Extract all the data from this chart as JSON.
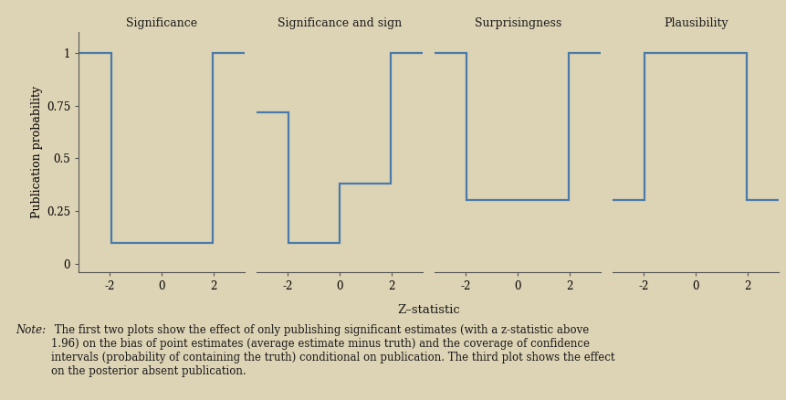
{
  "background_color": "#ddd3b5",
  "line_color": "#4a7aaa",
  "line_width": 1.6,
  "titles": [
    "Significance",
    "Significance and sign",
    "Surprisingness",
    "Plausibility"
  ],
  "xlabel": "Z–statistic",
  "ylabel": "Publication probability",
  "yticks": [
    0,
    0.25,
    0.5,
    0.75,
    1
  ],
  "ytick_labels": [
    "0",
    "0.25",
    "0.5",
    "0.75",
    "1"
  ],
  "xticks": [
    -2,
    0,
    2
  ],
  "xlim": [
    -3.2,
    3.2
  ],
  "ylim": [
    -0.04,
    1.1
  ],
  "plots": [
    {
      "name": "Significance",
      "x": [
        -3.2,
        -1.96,
        -1.96,
        1.96,
        1.96,
        3.2
      ],
      "y": [
        1.0,
        1.0,
        0.1,
        0.1,
        1.0,
        1.0
      ]
    },
    {
      "name": "Significance and sign",
      "x": [
        -3.2,
        -1.96,
        -1.96,
        0.0,
        0.0,
        1.96,
        1.96,
        3.2
      ],
      "y": [
        0.72,
        0.72,
        0.1,
        0.1,
        0.38,
        0.38,
        1.0,
        1.0
      ]
    },
    {
      "name": "Surprisingness",
      "x": [
        -3.2,
        -1.96,
        -1.96,
        1.96,
        1.96,
        3.2
      ],
      "y": [
        1.0,
        1.0,
        0.3,
        0.3,
        1.0,
        1.0
      ]
    },
    {
      "name": "Plausibility",
      "x": [
        -3.2,
        -1.96,
        -1.96,
        1.96,
        1.96,
        3.2
      ],
      "y": [
        0.3,
        0.3,
        1.0,
        1.0,
        0.3,
        0.3
      ]
    }
  ],
  "note_prefix": "Note:",
  "note_body": " The first two plots show the effect of only publishing significant estimates (with a –statistic above\n1.96) on the bias of point estimates (average estimate minus truth) and the coverage of confidence\nintervals (probability of containing the truth) conditional on publication. The third plot shows the effect\non the posterior absent publication.",
  "note_full": "Note: The first two plots show the effect of only publishing significant estimates (with a z-statistic above\n1.96) on the bias of point estimates (average estimate minus truth) and the coverage of confidence\nintervals (probability of containing the truth) conditional on publication. The third plot shows the effect\non the posterior absent publication."
}
